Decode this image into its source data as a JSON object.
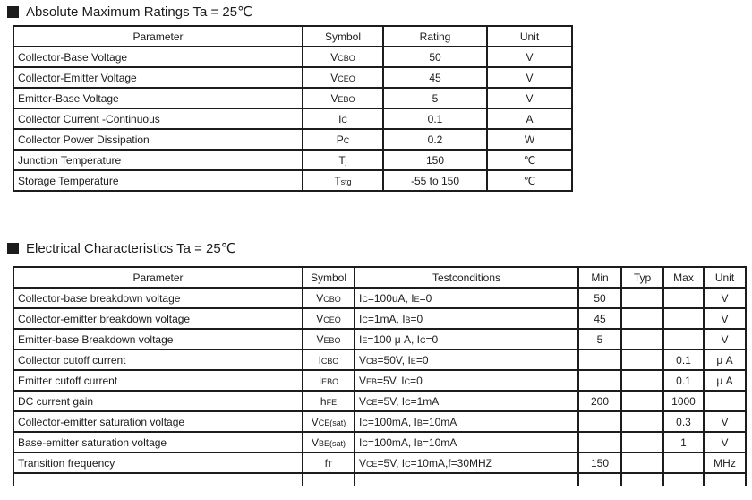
{
  "abs_max": {
    "title": "Absolute Maximum Ratings Ta = 25℃",
    "headers": {
      "parameter": "Parameter",
      "symbol": "Symbol",
      "rating": "Rating",
      "unit": "Unit"
    },
    "rows": [
      {
        "parameter": "Collector-Base Voltage",
        "symbol": [
          "V",
          {
            "sub": "CBO"
          }
        ],
        "rating": "50",
        "unit": "V"
      },
      {
        "parameter": "Collector-Emitter Voltage",
        "symbol": [
          "V",
          {
            "sub": "CEO"
          }
        ],
        "rating": "45",
        "unit": "V"
      },
      {
        "parameter": "Emitter-Base Voltage",
        "symbol": [
          "V",
          {
            "sub": "EBO"
          }
        ],
        "rating": "5",
        "unit": "V"
      },
      {
        "parameter": "Collector Current -Continuous",
        "symbol": [
          "I",
          {
            "sub": "C"
          }
        ],
        "rating": "0.1",
        "unit": "A"
      },
      {
        "parameter": "Collector Power Dissipation",
        "symbol": [
          "P",
          {
            "sub": "C"
          }
        ],
        "rating": "0.2",
        "unit": "W"
      },
      {
        "parameter": "Junction Temperature",
        "symbol": [
          "T",
          {
            "sub": "j"
          }
        ],
        "rating": "150",
        "unit": "℃"
      },
      {
        "parameter": "Storage Temperature",
        "symbol": [
          "T",
          {
            "sub": "stg"
          }
        ],
        "rating": "-55 to 150",
        "unit": "℃"
      }
    ]
  },
  "elec_char": {
    "title": "Electrical Characteristics Ta = 25℃",
    "headers": {
      "parameter": "Parameter",
      "symbol": "Symbol",
      "conditions": "Testconditions",
      "min": "Min",
      "typ": "Typ",
      "max": "Max",
      "unit": "Unit"
    },
    "rows": [
      {
        "parameter": "Collector-base breakdown voltage",
        "symbol": [
          "V",
          {
            "sub": "CBO"
          }
        ],
        "conditions": [
          "I",
          {
            "sub": "C"
          },
          "=100uA, I",
          {
            "sub": "E"
          },
          "=0"
        ],
        "min": "50",
        "typ": "",
        "max": "",
        "unit": "V"
      },
      {
        "parameter": "Collector-emitter breakdown voltage",
        "symbol": [
          "V",
          {
            "sub": "CEO"
          }
        ],
        "conditions": [
          "I",
          {
            "sub": "C"
          },
          "=1mA, I",
          {
            "sub": "B"
          },
          "=0"
        ],
        "min": "45",
        "typ": "",
        "max": "",
        "unit": "V"
      },
      {
        "parameter": "Emitter-base Breakdown voltage",
        "symbol": [
          "V",
          {
            "sub": "EBO"
          }
        ],
        "conditions": [
          "I",
          {
            "sub": "E"
          },
          "=100 μ A, I",
          {
            "sub": "C"
          },
          "=0"
        ],
        "min": "5",
        "typ": "",
        "max": "",
        "unit": "V"
      },
      {
        "parameter": "Collector cutoff current",
        "symbol": [
          "I",
          {
            "sub": "CBO"
          }
        ],
        "conditions": [
          "V",
          {
            "sub": "CB"
          },
          "=50V, I",
          {
            "sub": "E"
          },
          "=0"
        ],
        "min": "",
        "typ": "",
        "max": "0.1",
        "unit": "μ A"
      },
      {
        "parameter": "Emitter cutoff current",
        "symbol": [
          "I",
          {
            "sub": "EBO"
          }
        ],
        "conditions": [
          "V",
          {
            "sub": "EB"
          },
          "=5V, I",
          {
            "sub": "C"
          },
          "=0"
        ],
        "min": "",
        "typ": "",
        "max": "0.1",
        "unit": "μ A"
      },
      {
        "parameter": "DC current gain",
        "symbol": [
          "h",
          {
            "sub": "FE"
          }
        ],
        "conditions": [
          "V",
          {
            "sub": "CE"
          },
          "=5V, I",
          {
            "sub": "C"
          },
          "=1mA"
        ],
        "min": "200",
        "typ": "",
        "max": "1000",
        "unit": ""
      },
      {
        "parameter": "Collector-emitter saturation voltage",
        "symbol": [
          "V",
          {
            "sub": "CE(sat)"
          }
        ],
        "conditions": [
          "I",
          {
            "sub": "C"
          },
          "=100mA, I",
          {
            "sub": "B"
          },
          "=10mA"
        ],
        "min": "",
        "typ": "",
        "max": "0.3",
        "unit": "V"
      },
      {
        "parameter": "Base-emitter saturation voltage",
        "symbol": [
          "V",
          {
            "sub": "BE(sat)"
          }
        ],
        "conditions": [
          "I",
          {
            "sub": "C"
          },
          "=100mA, I",
          {
            "sub": "B"
          },
          "=10mA"
        ],
        "min": "",
        "typ": "",
        "max": "1",
        "unit": "V"
      },
      {
        "parameter": "Transition frequency",
        "symbol": [
          "f",
          {
            "sub": "T"
          }
        ],
        "conditions": [
          "V",
          {
            "sub": "CE"
          },
          "=5V, I",
          {
            "sub": "C"
          },
          "=10mA,f=30MHZ"
        ],
        "min": "150",
        "typ": "",
        "max": "",
        "unit": "MHz"
      }
    ]
  }
}
